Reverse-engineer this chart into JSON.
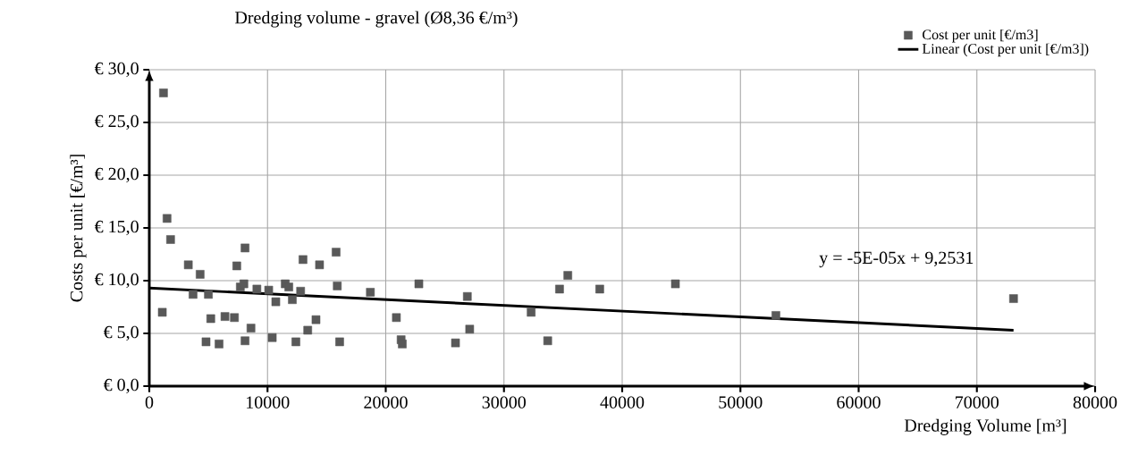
{
  "chart_data": {
    "type": "scatter",
    "title": "Dredging volume - gravel (Ø8,36 €/m³)",
    "xlabel": "Dredging Volume [m³]",
    "ylabel": "Costs per unit [€/m³]",
    "series": [
      {
        "name": "Cost per unit [€/m3]",
        "color": "#595959",
        "marker": "square",
        "x": [
          1200,
          1500,
          1800,
          1100,
          3300,
          4300,
          3700,
          5000,
          4800,
          5200,
          5900,
          6400,
          7200,
          7400,
          7700,
          8000,
          8100,
          8100,
          8600,
          9100,
          10100,
          10400,
          10700,
          11500,
          11800,
          12100,
          12400,
          13000,
          12800,
          13400,
          14100,
          14400,
          15800,
          15900,
          16100,
          18700,
          20900,
          21300,
          21400,
          22800,
          25900,
          26900,
          27100,
          32300,
          33700,
          34700,
          35400,
          38100,
          44500,
          53000,
          73100
        ],
        "values": [
          27.8,
          15.9,
          13.9,
          7.0,
          11.5,
          10.6,
          8.7,
          8.7,
          4.2,
          6.4,
          4.0,
          6.6,
          6.5,
          11.4,
          9.4,
          9.7,
          13.1,
          4.3,
          5.5,
          9.2,
          9.1,
          4.6,
          8.0,
          9.7,
          9.4,
          8.2,
          4.2,
          12.0,
          9.0,
          5.3,
          6.3,
          11.5,
          12.7,
          9.5,
          4.2,
          8.9,
          6.5,
          4.4,
          4.0,
          9.7,
          4.1,
          8.5,
          5.4,
          7.0,
          4.3,
          9.2,
          10.5,
          9.2,
          9.7,
          6.7,
          8.3
        ]
      },
      {
        "name": "Linear (Cost per unit [€/m3])",
        "type": "line",
        "color": "#000000",
        "marker": "none",
        "x": [
          0,
          73100
        ],
        "values": [
          9.3,
          5.3
        ]
      }
    ],
    "xlim": [
      0,
      80000
    ],
    "xticks": [
      0,
      10000,
      20000,
      30000,
      40000,
      50000,
      60000,
      70000,
      80000
    ],
    "ylim": [
      0,
      30
    ],
    "yticks": [
      {
        "value": 0,
        "label": "€ 0,0"
      },
      {
        "value": 5,
        "label": "€ 5,0"
      },
      {
        "value": 10,
        "label": "€ 10,0"
      },
      {
        "value": 15,
        "label": "€ 15,0"
      },
      {
        "value": 20,
        "label": "€ 20,0"
      },
      {
        "value": 25,
        "label": "€ 25,0"
      },
      {
        "value": 30,
        "label": "€ 30,0"
      }
    ],
    "grid": true,
    "legend": "top right",
    "annotations": [
      "y = -5E-05x + 9,2531"
    ]
  }
}
